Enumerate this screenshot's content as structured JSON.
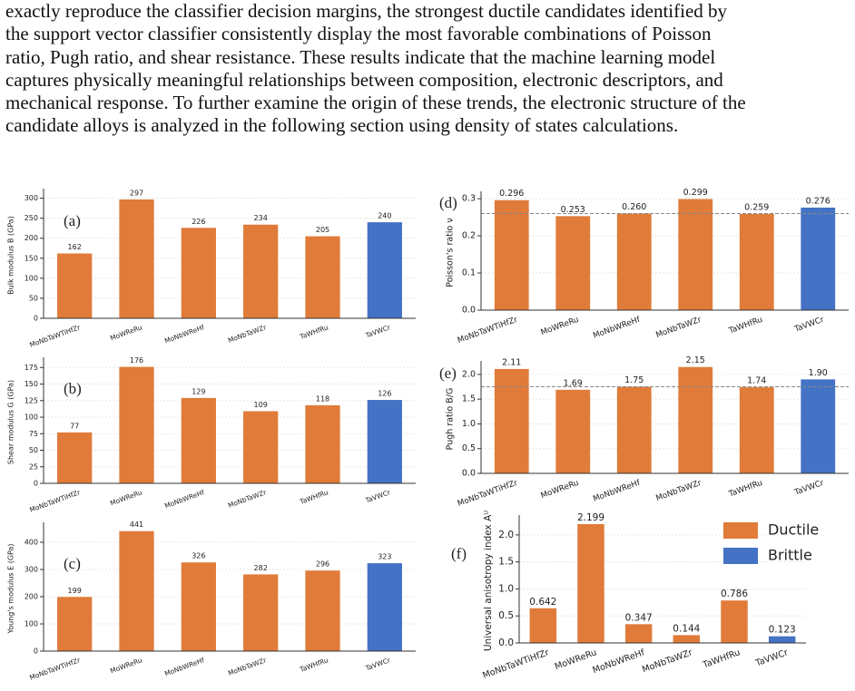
{
  "paragraph": {
    "lines": [
      "exactly reproduce the classifier decision margins, the strongest ductile candidates identified by",
      "the support vector classifier consistently display the most favorable combinations of Poisson",
      "ratio, Pugh ratio, and shear resistance. These results indicate that the machine learning model",
      "captures physically meaningful relationships between composition, electronic descriptors, and",
      "mechanical response. To further examine the origin of these trends, the electronic structure of the",
      "candidate alloys is analyzed in the following section using density of states calculations."
    ]
  },
  "chart_data": [
    {
      "type": "bar",
      "panel_label": "(a)",
      "ylabel": "Bulk modulus  B  (GPa)",
      "categories": [
        "MoNbTaWTiHfZr",
        "MoWReRu",
        "MoNbWReHf",
        "MoNbTaWZr",
        "TaWHfRu",
        "TaVWCr"
      ],
      "values": [
        162,
        297,
        226,
        234,
        205,
        240
      ],
      "colors": [
        "#e07b39",
        "#e07b39",
        "#e07b39",
        "#e07b39",
        "#e07b39",
        "#4472c4"
      ],
      "ylim": [
        0,
        315
      ],
      "yticks": [
        0,
        50,
        100,
        150,
        200,
        250,
        300
      ],
      "grid": true
    },
    {
      "type": "bar",
      "panel_label": "(b)",
      "ylabel": "Shear modulus  G  (GPa)",
      "categories": [
        "MoNbTaWTiHfZr",
        "MoWReRu",
        "MoNbWReHf",
        "MoNbTaWZr",
        "TaWHfRu",
        "TaVWCr"
      ],
      "values": [
        77,
        176,
        129,
        109,
        118,
        126
      ],
      "colors": [
        "#e07b39",
        "#e07b39",
        "#e07b39",
        "#e07b39",
        "#e07b39",
        "#4472c4"
      ],
      "ylim": [
        0,
        185
      ],
      "yticks": [
        0,
        25,
        50,
        75,
        100,
        125,
        150,
        175
      ],
      "grid": true
    },
    {
      "type": "bar",
      "panel_label": "(c)",
      "ylabel": "Young's modulus  E  (GPa)",
      "categories": [
        "MoNbTaWTiHfZr",
        "MoWReRu",
        "MoNbWReHf",
        "MoNbTaWZr",
        "TaWHfRu",
        "TaVWCr"
      ],
      "values": [
        199,
        441,
        326,
        282,
        296,
        323
      ],
      "colors": [
        "#e07b39",
        "#e07b39",
        "#e07b39",
        "#e07b39",
        "#e07b39",
        "#4472c4"
      ],
      "ylim": [
        0,
        460
      ],
      "yticks": [
        0,
        100,
        200,
        300,
        400
      ],
      "grid": true
    },
    {
      "type": "bar",
      "panel_label": "(d)",
      "ylabel": "Poisson's ratio  ν",
      "categories": [
        "MoNbTaWTiHfZr",
        "MoWReRu",
        "MoNbWReHf",
        "MoNbTaWZr",
        "TaWHfRu",
        "TaVWCr"
      ],
      "values": [
        0.296,
        0.253,
        0.26,
        0.299,
        0.259,
        0.276
      ],
      "value_labels": [
        "0.296",
        "0.253",
        "0.260",
        "0.299",
        "0.259",
        "0.276"
      ],
      "colors": [
        "#e07b39",
        "#e07b39",
        "#e07b39",
        "#e07b39",
        "#e07b39",
        "#4472c4"
      ],
      "ylim": [
        0,
        0.31
      ],
      "yticks": [
        {
          "value": 0,
          "label": "0.0"
        },
        0.1,
        0.2,
        0.3
      ],
      "grid": true,
      "hline": 0.26
    },
    {
      "type": "bar",
      "panel_label": "(e)",
      "ylabel": "Pugh ratio  B/G",
      "categories": [
        "MoNbTaWTiHfZr",
        "MoWReRu",
        "MoNbWReHf",
        "MoNbTaWZr",
        "TaWHfRu",
        "TaVWCr"
      ],
      "values": [
        2.11,
        1.69,
        1.75,
        2.15,
        1.74,
        1.9
      ],
      "value_labels": [
        "2.11",
        "1.69",
        "1.75",
        "2.15",
        "1.74",
        "1.90"
      ],
      "colors": [
        "#e07b39",
        "#e07b39",
        "#e07b39",
        "#e07b39",
        "#e07b39",
        "#4472c4"
      ],
      "ylim": [
        0,
        2.2
      ],
      "yticks": [
        {
          "value": 0,
          "label": "0.0"
        },
        0.5,
        {
          "value": 1,
          "label": "1.0"
        },
        1.5,
        {
          "value": 2,
          "label": "2.0"
        }
      ],
      "grid": true,
      "hline": 1.75
    },
    {
      "type": "bar",
      "panel_label": "(f)",
      "ylabel": "Universal anisotropy index  Aᵁ",
      "categories": [
        "MoNbTaWTiHfZr",
        "MoWReRu",
        "MoNbWReHf",
        "MoNbTaWZr",
        "TaWHfRu",
        "TaVWCr"
      ],
      "values": [
        0.642,
        2.199,
        0.347,
        0.144,
        0.786,
        0.123
      ],
      "colors": [
        "#e07b39",
        "#e07b39",
        "#e07b39",
        "#e07b39",
        "#e07b39",
        "#4472c4"
      ],
      "ylim": [
        0,
        2.3
      ],
      "yticks": [
        {
          "value": 0,
          "label": "0.0"
        },
        0.5,
        {
          "value": 1,
          "label": "1.0"
        },
        1.5,
        {
          "value": 2,
          "label": "2.0"
        }
      ],
      "grid": true,
      "legend": [
        {
          "name": "Ductile",
          "color": "#e07b39"
        },
        {
          "name": "Brittle",
          "color": "#4472c4"
        }
      ]
    }
  ]
}
